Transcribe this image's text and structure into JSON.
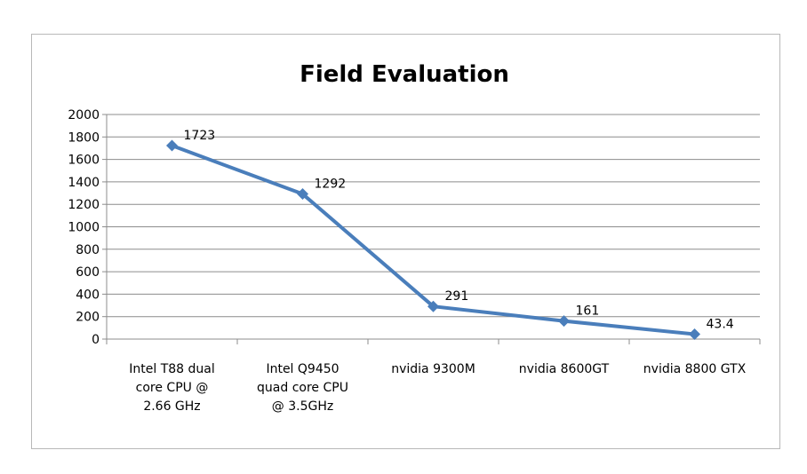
{
  "chart_data": {
    "type": "line",
    "title": "Field Evaluation",
    "categories": [
      [
        "Intel T88 dual",
        "core CPU @",
        "2.66 GHz"
      ],
      [
        "Intel Q9450",
        "quad core CPU",
        "@ 3.5GHz"
      ],
      [
        "nvidia 9300M"
      ],
      [
        "nvidia 8600GT"
      ],
      [
        "nvidia 8800 GTX"
      ]
    ],
    "series": [
      {
        "values": [
          1723,
          1292,
          291,
          161,
          43.4
        ],
        "labels": [
          "1723",
          "1292",
          "291",
          "161",
          "43.4"
        ]
      }
    ],
    "yticks": [
      "0",
      "200",
      "400",
      "600",
      "800",
      "1000",
      "1200",
      "1400",
      "1600",
      "1800",
      "2000"
    ],
    "ylim": [
      0,
      2000
    ],
    "ystep": 200,
    "grid": true,
    "legend": "none",
    "line_color": "#4a7ebb"
  }
}
